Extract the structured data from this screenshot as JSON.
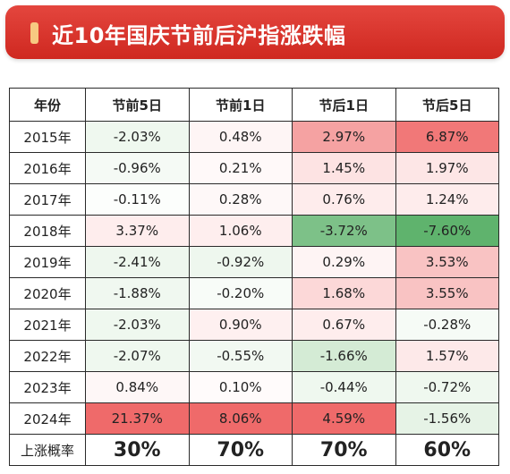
{
  "title": "近10年国庆节前后沪指涨跌幅",
  "colors": {
    "banner": "#d8322a",
    "up_strong": "#ef6a6a",
    "up_soft": "#fde3e3",
    "down_strong": "#5fb36d",
    "down_soft": "#dff0df"
  },
  "chart_data": {
    "type": "table",
    "columns": [
      "年份",
      "节前5日",
      "节前1日",
      "节后1日",
      "节后5日"
    ],
    "rows": [
      {
        "year": "2015年",
        "values": [
          "-2.03%",
          "0.48%",
          "2.97%",
          "6.87%"
        ]
      },
      {
        "year": "2016年",
        "values": [
          "-0.96%",
          "0.21%",
          "1.45%",
          "1.97%"
        ]
      },
      {
        "year": "2017年",
        "values": [
          "-0.11%",
          "0.28%",
          "0.76%",
          "1.24%"
        ]
      },
      {
        "year": "2018年",
        "values": [
          "3.37%",
          "1.06%",
          "-3.72%",
          "-7.60%"
        ]
      },
      {
        "year": "2019年",
        "values": [
          "-2.41%",
          "-0.92%",
          "0.29%",
          "3.53%"
        ]
      },
      {
        "year": "2020年",
        "values": [
          "-1.88%",
          "-0.20%",
          "1.68%",
          "3.55%"
        ]
      },
      {
        "year": "2021年",
        "values": [
          "-2.03%",
          "0.90%",
          "0.67%",
          "-0.28%"
        ]
      },
      {
        "year": "2022年",
        "values": [
          "-2.07%",
          "-0.55%",
          "-1.66%",
          "1.57%"
        ]
      },
      {
        "year": "2023年",
        "values": [
          "0.84%",
          "0.10%",
          "-0.44%",
          "-0.72%"
        ]
      },
      {
        "year": "2024年",
        "values": [
          "21.37%",
          "8.06%",
          "4.59%",
          "-1.56%"
        ]
      }
    ],
    "summary": {
      "label": "上涨概率",
      "values": [
        "30%",
        "70%",
        "70%",
        "60%"
      ]
    }
  }
}
